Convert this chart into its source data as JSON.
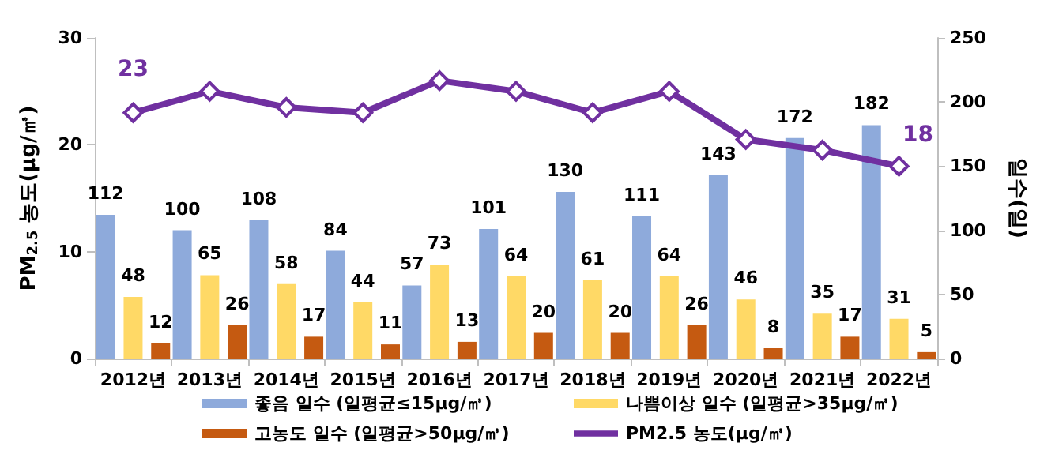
{
  "chart_data": {
    "type": "bar",
    "categories": [
      "2012년",
      "2013년",
      "2014년",
      "2015년",
      "2016년",
      "2017년",
      "2018년",
      "2019년",
      "2020년",
      "2021년",
      "2022년"
    ],
    "series": [
      {
        "name": "좋음 일수 (일평균≤15μg/㎥)",
        "color": "#8eaadb",
        "axis": "y2",
        "values": [
          112,
          100,
          108,
          84,
          57,
          101,
          130,
          111,
          143,
          172,
          182
        ],
        "value_labels": [
          "112",
          "100",
          "108",
          "84",
          "57",
          "101",
          "130",
          "111",
          "143",
          "172",
          "182"
        ]
      },
      {
        "name": "나쁨이상 일수 (일평균>35μg/㎥)",
        "color": "#ffd966",
        "axis": "y2",
        "values": [
          48,
          65,
          58,
          44,
          73,
          64,
          61,
          64,
          46,
          35,
          31
        ],
        "value_labels": [
          "48",
          "65",
          "58",
          "44",
          "73",
          "64",
          "61",
          "64",
          "46",
          "35",
          "31"
        ]
      },
      {
        "name": "고농도 일수 (일평균>50μg/㎥)",
        "color": "#c55a11",
        "axis": "y2",
        "values": [
          12,
          26,
          17,
          11,
          13,
          20,
          20,
          26,
          8,
          17,
          5
        ],
        "value_labels": [
          "12",
          "26",
          "17",
          "11",
          "13",
          "20",
          "20",
          "26",
          "8",
          "17",
          "5"
        ]
      },
      {
        "name": "PM2.5 농도(μg/㎥)",
        "type": "line",
        "color": "#7030a0",
        "marker": "diamond",
        "values": [
          23,
          25,
          23.5,
          23,
          26,
          25,
          23,
          25,
          20.5,
          19.5,
          18
        ],
        "value_labels": [
          "23",
          null,
          null,
          null,
          null,
          null,
          null,
          null,
          null,
          null,
          "18"
        ]
      }
    ],
    "ylabel": "PM$_{2.5}$ 농도(μg/㎥)",
    "y2label": "일수(일)",
    "ylim": [
      0,
      30
    ],
    "yticks": [
      0,
      10,
      20,
      30
    ],
    "y2lim": [
      0,
      250
    ],
    "y2ticks": [
      0,
      50,
      100,
      150,
      200,
      250
    ],
    "grid": false,
    "legend": "bottom"
  }
}
